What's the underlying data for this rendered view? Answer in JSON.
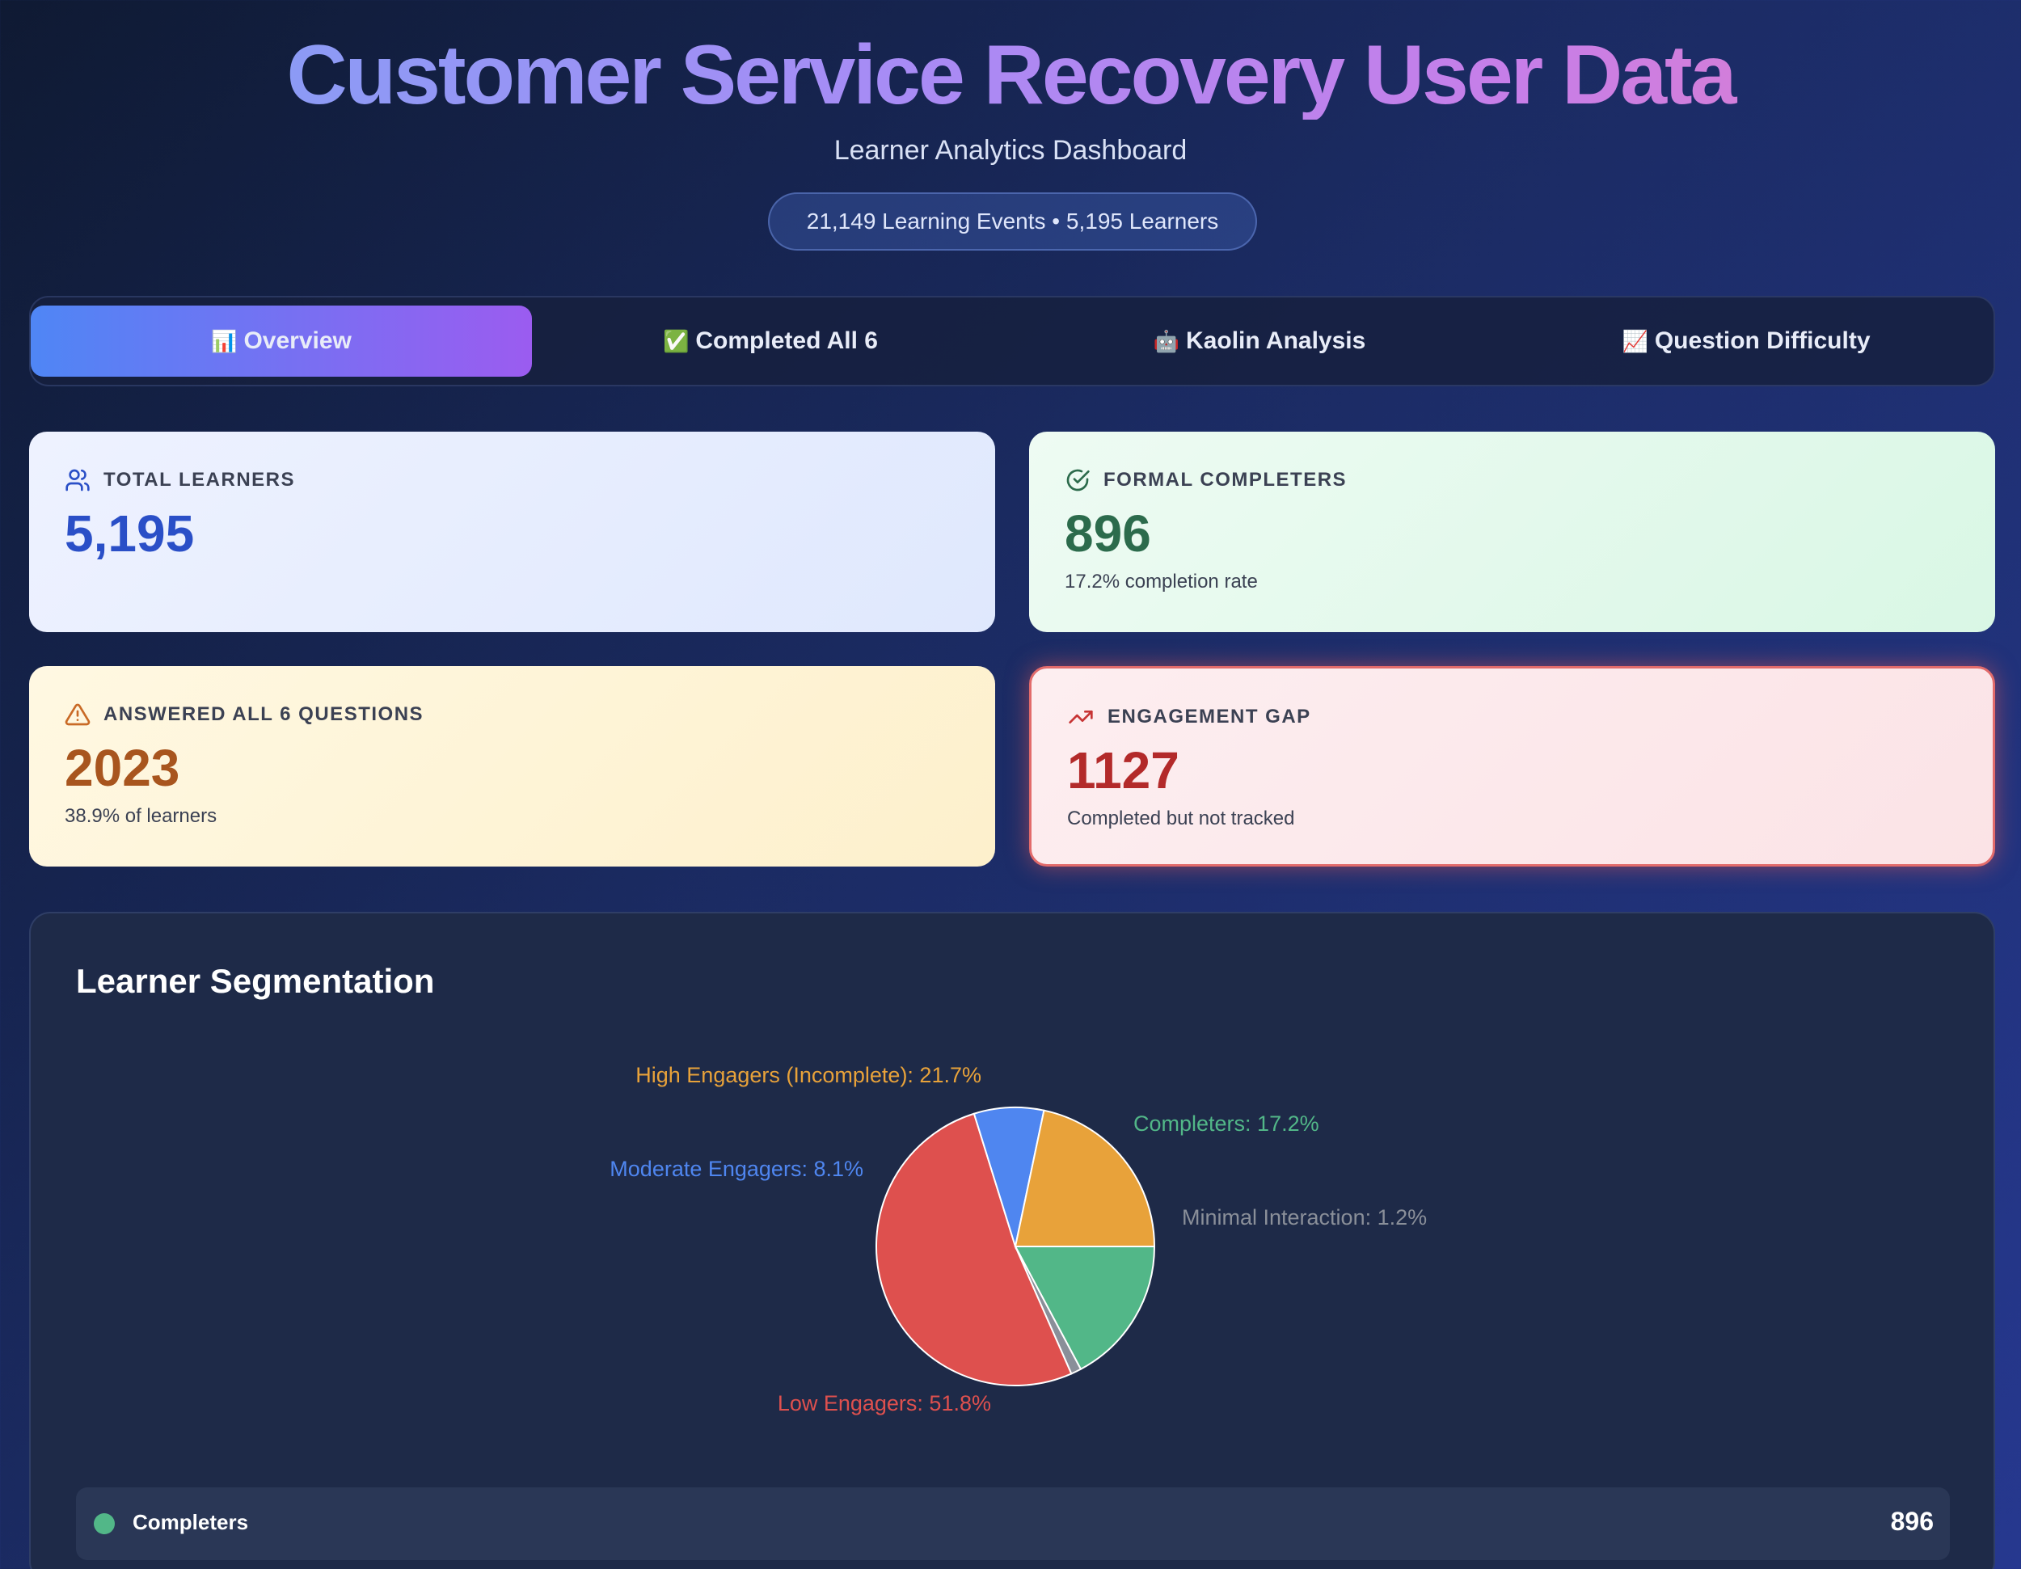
{
  "header": {
    "title": "Customer Service Recovery User Data",
    "subtitle": "Learner Analytics Dashboard",
    "summary": "21,149 Learning Events • 5,195 Learners"
  },
  "tabs": [
    {
      "icon": "📊",
      "label": "Overview",
      "active": true
    },
    {
      "icon": "✅",
      "label": "Completed All 6",
      "active": false
    },
    {
      "icon": "🤖",
      "label": "Kaolin Analysis",
      "active": false
    },
    {
      "icon": "📈",
      "label": "Question Difficulty",
      "active": false
    }
  ],
  "cards": {
    "total_learners": {
      "label": "TOTAL LEARNERS",
      "value": "5,195",
      "icon": "users-icon"
    },
    "formal_completers": {
      "label": "FORMAL COMPLETERS",
      "value": "896",
      "sub": "17.2% completion rate",
      "icon": "check-circle-icon"
    },
    "answered_all": {
      "label": "ANSWERED ALL 6 QUESTIONS",
      "value": "2023",
      "sub": "38.9% of learners",
      "icon": "warning-icon"
    },
    "engagement_gap": {
      "label": "ENGAGEMENT GAP",
      "value": "1127",
      "sub": "Completed but not tracked",
      "icon": "trending-up-icon"
    }
  },
  "segmentation": {
    "title": "Learner Segmentation",
    "legend": [
      {
        "label": "Completers",
        "value": "896",
        "color": "#52b788"
      }
    ]
  },
  "chart_data": {
    "type": "pie",
    "slices": [
      {
        "label": "Completers: 17.2%",
        "name": "Completers",
        "value": 17.2,
        "color": "#52b788"
      },
      {
        "label": "Minimal Interaction: 1.2%",
        "name": "Minimal Interaction",
        "value": 1.2,
        "color": "#8a8f99"
      },
      {
        "label": "Low Engagers: 51.8%",
        "name": "Low Engagers",
        "value": 51.8,
        "color": "#de504e"
      },
      {
        "label": "Moderate Engagers: 8.1%",
        "name": "Moderate Engagers",
        "value": 8.1,
        "color": "#4f86f0"
      },
      {
        "label": "High Engagers (Incomplete): 21.7%",
        "name": "High Engagers (Incomplete)",
        "value": 21.7,
        "color": "#e8a23a"
      }
    ]
  }
}
